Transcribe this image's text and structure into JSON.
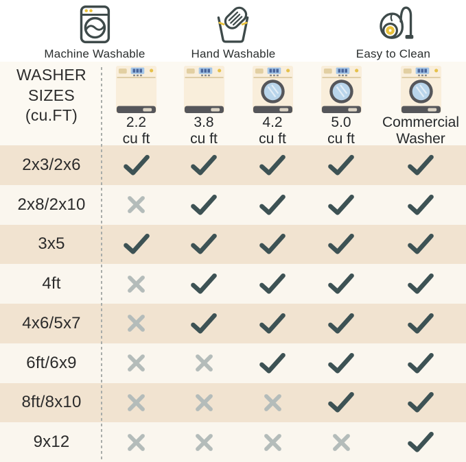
{
  "legend": {
    "items": [
      {
        "icon": "washing-machine-icon",
        "label": "Machine Washable"
      },
      {
        "icon": "hand-wash-icon",
        "label": "Hand Washable"
      },
      {
        "icon": "vacuum-icon",
        "label": "Easy to Clean"
      }
    ]
  },
  "corner": {
    "lines": [
      "WASHER",
      "SIZES",
      "(cu.FT)"
    ]
  },
  "columns": [
    {
      "size": "2.2",
      "unit": "cu ft",
      "washer": "top-load"
    },
    {
      "size": "3.8",
      "unit": "cu ft",
      "washer": "top-load"
    },
    {
      "size": "4.2",
      "unit": "cu ft",
      "washer": "front-load"
    },
    {
      "size": "5.0",
      "unit": "cu ft",
      "washer": "front-load"
    },
    {
      "size": "Commercial",
      "unit": "Washer",
      "washer": "front-load"
    }
  ],
  "chart_data": {
    "type": "table",
    "title": "WASHER SIZES (cu.FT)",
    "legend": [
      "Machine Washable",
      "Hand Washable",
      "Easy to Clean"
    ],
    "columns": [
      "2.2 cu ft",
      "3.8 cu ft",
      "4.2 cu ft",
      "5.0 cu ft",
      "Commercial Washer"
    ],
    "rows": [
      "2x3/2x6",
      "2x8/2x10",
      "3x5",
      "4ft",
      "4x6/5x7",
      "6ft/6x9",
      "8ft/8x10",
      "9x12"
    ],
    "values": [
      [
        "check",
        "check",
        "check",
        "check",
        "check"
      ],
      [
        "x",
        "check",
        "check",
        "check",
        "check"
      ],
      [
        "check",
        "check",
        "check",
        "check",
        "check"
      ],
      [
        "x",
        "check",
        "check",
        "check",
        "check"
      ],
      [
        "x",
        "check",
        "check",
        "check",
        "check"
      ],
      [
        "x",
        "x",
        "check",
        "check",
        "check"
      ],
      [
        "x",
        "x",
        "x",
        "check",
        "check"
      ],
      [
        "x",
        "x",
        "x",
        "x",
        "check"
      ]
    ]
  },
  "colors": {
    "check": "#3d5254",
    "cross": "#b4bcba",
    "row_tan": "#f1e3d0",
    "row_cream": "#faf6ee",
    "header_bg": "#fcf9f2",
    "accent_yellow": "#eac23c",
    "icon_outline": "#3e4a4a",
    "washer_body": "#f9eedb",
    "washer_dark": "#55565a",
    "washer_display": "#a6c7e8",
    "washer_window": "#b9d5eb",
    "text": "#2d2d2d",
    "divider": "#a8aca9"
  }
}
